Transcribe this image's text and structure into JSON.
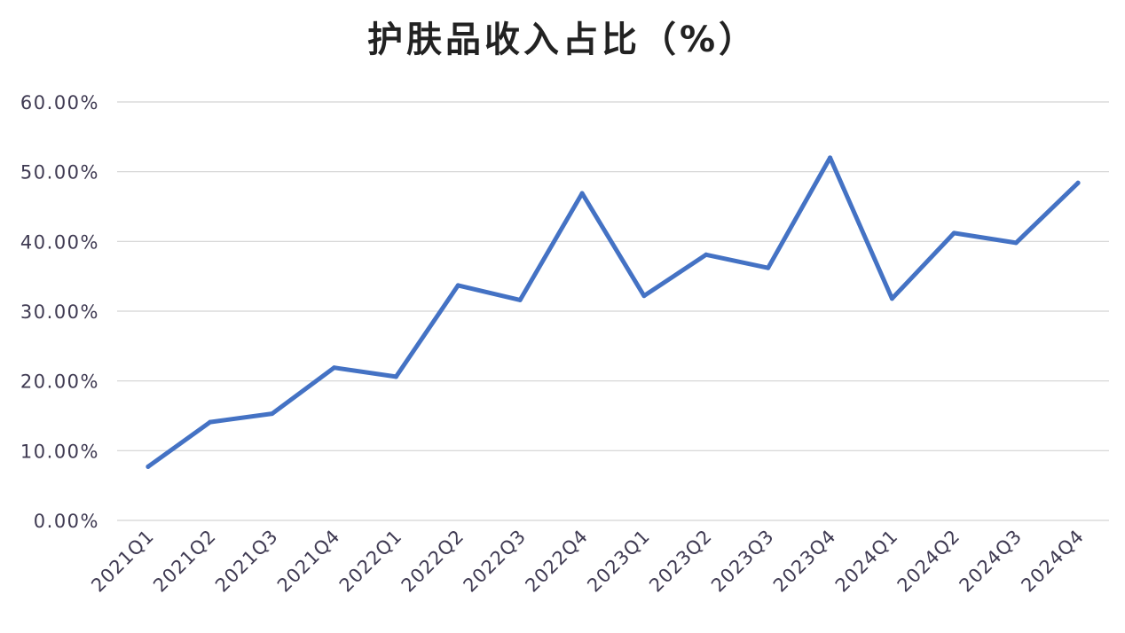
{
  "chart_data": {
    "type": "line",
    "title": "护肤品收入占比（%）",
    "xlabel": "",
    "ylabel": "",
    "categories": [
      "2021Q1",
      "2021Q2",
      "2021Q3",
      "2021Q4",
      "2022Q1",
      "2022Q2",
      "2022Q3",
      "2022Q4",
      "2023Q1",
      "2023Q2",
      "2023Q3",
      "2023Q4",
      "2024Q1",
      "2024Q2",
      "2024Q3",
      "2024Q4"
    ],
    "series": [
      {
        "values": [
          7.7,
          14.1,
          15.3,
          21.9,
          20.6,
          33.7,
          31.6,
          46.9,
          32.2,
          38.1,
          36.2,
          52.0,
          31.8,
          41.2,
          39.8,
          48.4
        ],
        "color": "#4472c4"
      }
    ],
    "ylim": [
      0,
      60
    ],
    "yticks": [
      "0.00%",
      "10.00%",
      "20.00%",
      "30.00%",
      "40.00%",
      "50.00%",
      "60.00%"
    ],
    "grid": true,
    "legend": "none"
  }
}
